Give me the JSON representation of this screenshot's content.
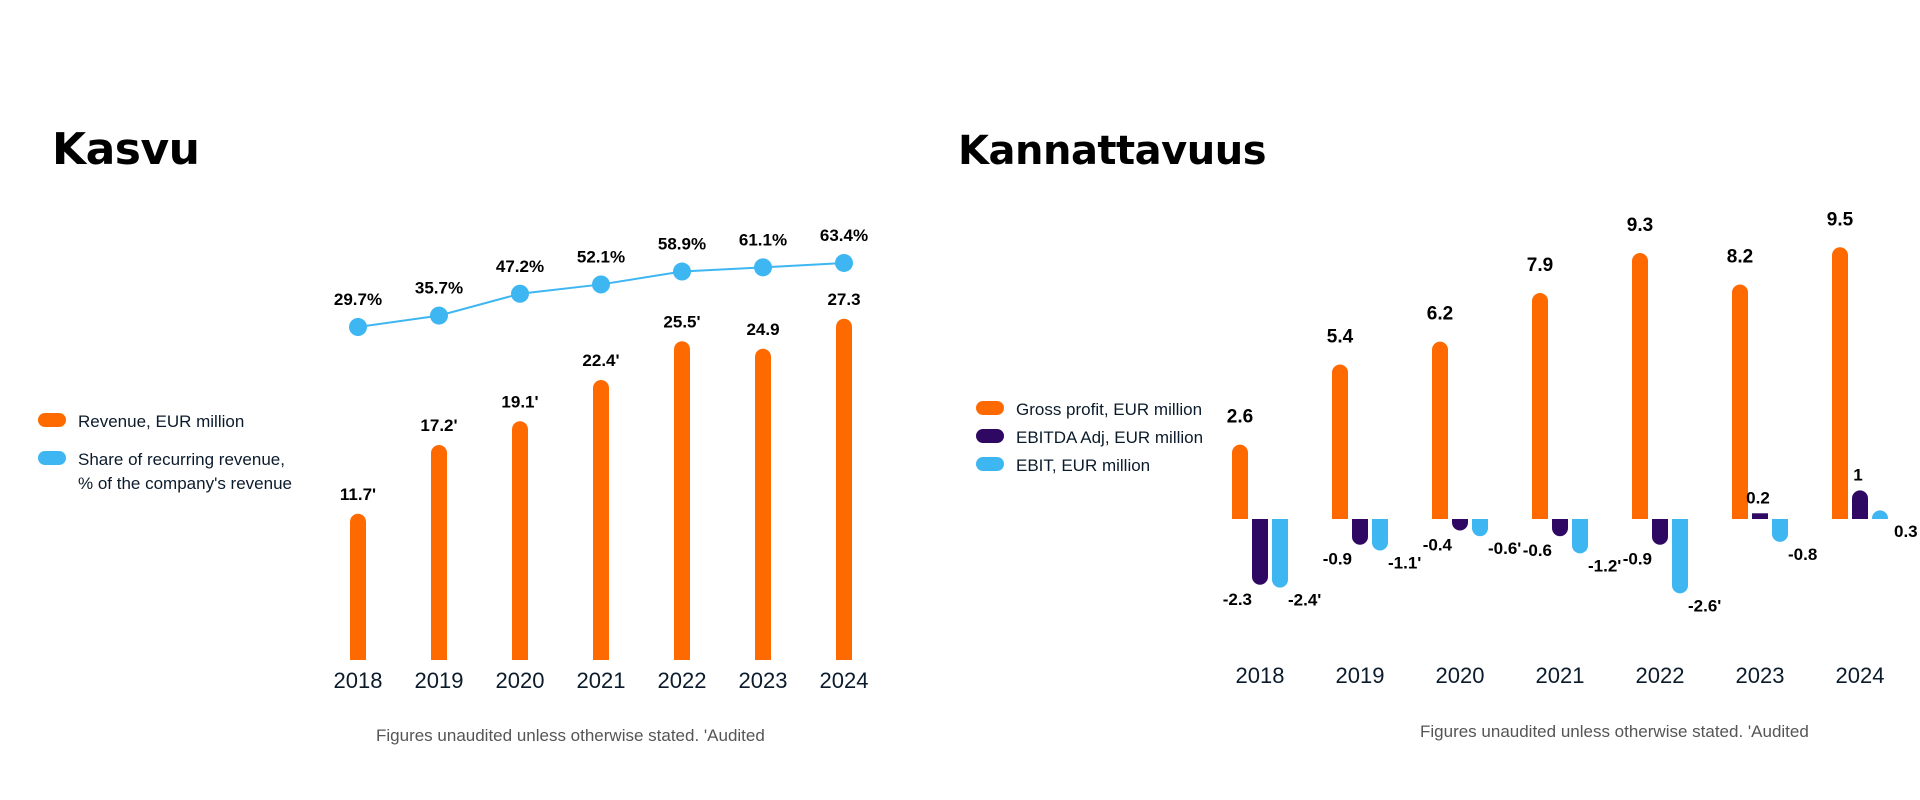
{
  "left": {
    "title": "Kasvu",
    "legend": [
      {
        "label": "Revenue, EUR million",
        "color": "#ff6a00"
      },
      {
        "label": "Share of recurring revenue, % of the company's revenue",
        "color": "#3db6f2"
      }
    ],
    "footnote": "Figures unaudited unless otherwise stated. 'Audited"
  },
  "right": {
    "title": "Kannattavuus",
    "legend": [
      {
        "label": "Gross profit, EUR million",
        "color": "#ff6a00"
      },
      {
        "label": "EBITDA Adj, EUR million",
        "color": "#2e0862"
      },
      {
        "label": "EBIT, EUR million",
        "color": "#3db6f2"
      }
    ],
    "footnote": "Figures unaudited unless otherwise stated. 'Audited"
  },
  "chart_data": [
    {
      "type": "bar",
      "title": "Kasvu",
      "categories": [
        "2018",
        "2019",
        "2020",
        "2021",
        "2022",
        "2023",
        "2024"
      ],
      "series": [
        {
          "name": "Revenue, EUR million",
          "type": "bar",
          "color": "#ff6a00",
          "values": [
            11.7,
            17.2,
            19.1,
            22.4,
            25.5,
            24.9,
            27.3
          ],
          "labels": [
            "11.7'",
            "17.2'",
            "19.1'",
            "22.4'",
            "25.5'",
            "24.9",
            "27.3"
          ]
        },
        {
          "name": "Share of recurring revenue, % of the company's revenue",
          "type": "line",
          "color": "#3db6f2",
          "values": [
            29.7,
            35.7,
            47.2,
            52.1,
            58.9,
            61.1,
            63.4
          ],
          "labels": [
            "29.7%",
            "35.7%",
            "47.2%",
            "52.1%",
            "58.9%",
            "61.1%",
            "63.4%"
          ]
        }
      ],
      "legend": "left",
      "grid": false
    },
    {
      "type": "bar",
      "title": "Kannattavuus",
      "categories": [
        "2018",
        "2019",
        "2020",
        "2021",
        "2022",
        "2023",
        "2024"
      ],
      "series": [
        {
          "name": "Gross profit, EUR million",
          "color": "#ff6a00",
          "values": [
            2.6,
            5.4,
            6.2,
            7.9,
            9.3,
            8.2,
            9.5
          ],
          "labels": [
            "2.6",
            "5.4",
            "6.2",
            "7.9",
            "9.3",
            "8.2",
            "9.5"
          ]
        },
        {
          "name": "EBITDA Adj, EUR million",
          "color": "#2e0862",
          "values": [
            -2.3,
            -0.9,
            -0.4,
            -0.6,
            -0.9,
            0.2,
            1
          ],
          "labels": [
            "-2.3",
            "-0.9",
            "-0.4",
            "-0.6",
            "-0.9",
            "0.2",
            "1"
          ]
        },
        {
          "name": "EBIT, EUR million",
          "color": "#3db6f2",
          "values": [
            -2.4,
            -1.1,
            -0.6,
            -1.2,
            -2.6,
            -0.8,
            0.3
          ],
          "labels": [
            "-2.4'",
            "-1.1'",
            "-0.6'",
            "-1.2'",
            "-2.6'",
            "-0.8",
            "0.3"
          ]
        }
      ],
      "legend": "left",
      "grid": false
    }
  ]
}
